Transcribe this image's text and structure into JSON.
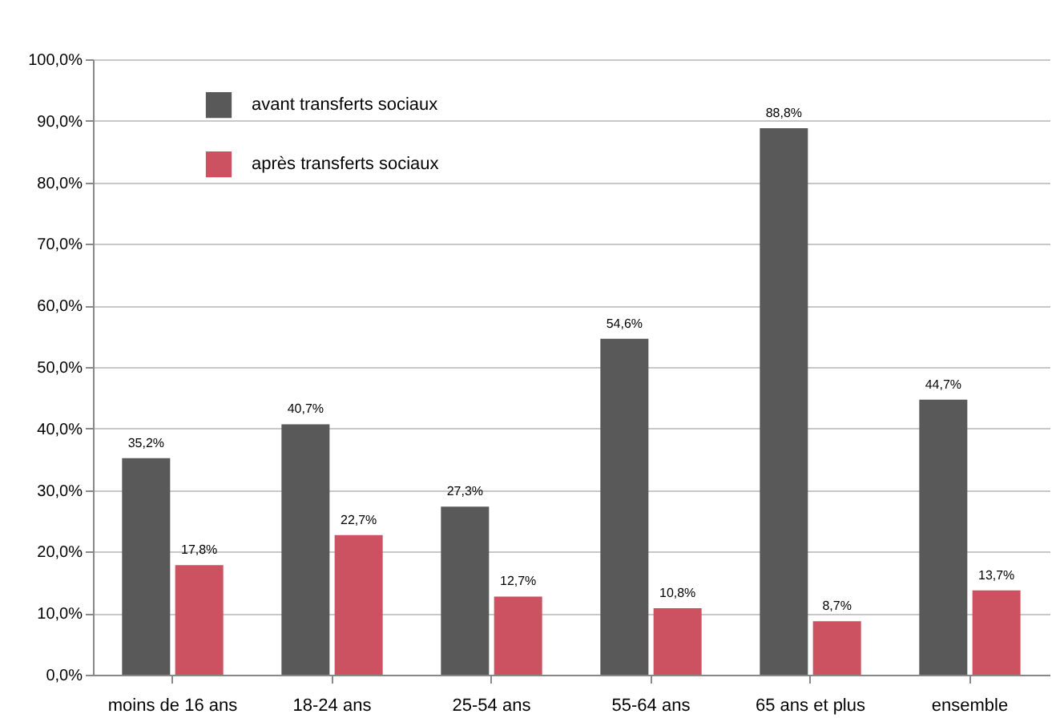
{
  "chart_data": {
    "type": "bar",
    "categories": [
      "moins de 16 ans",
      "18-24 ans",
      "25-54 ans",
      "55-64 ans",
      "65 ans et plus",
      "ensemble"
    ],
    "series": [
      {
        "name": "avant transferts sociaux",
        "color": "#595959",
        "values": [
          35.2,
          40.7,
          27.3,
          54.6,
          88.8,
          44.7
        ],
        "value_labels": [
          "35,2%",
          "40,7%",
          "27,3%",
          "54,6%",
          "88,8%",
          "44,7%"
        ]
      },
      {
        "name": "après transferts sociaux",
        "color": "#cc5262",
        "values": [
          17.8,
          22.7,
          12.7,
          10.8,
          8.7,
          13.7
        ],
        "value_labels": [
          "17,8%",
          "22,7%",
          "12,7%",
          "10,8%",
          "8,7%",
          "13,7%"
        ]
      }
    ],
    "ylim": [
      0,
      100
    ],
    "yticks": [
      {
        "value": 0,
        "label": "0,0%"
      },
      {
        "value": 10,
        "label": "10,0%"
      },
      {
        "value": 20,
        "label": "20,0%"
      },
      {
        "value": 30,
        "label": "30,0%"
      },
      {
        "value": 40,
        "label": "40,0%"
      },
      {
        "value": 50,
        "label": "50,0%"
      },
      {
        "value": 60,
        "label": "60,0%"
      },
      {
        "value": 70,
        "label": "70,0%"
      },
      {
        "value": 80,
        "label": "80,0%"
      },
      {
        "value": 90,
        "label": "90,0%"
      },
      {
        "value": 100,
        "label": "100,0%"
      }
    ],
    "grid": "y",
    "legend": "top left"
  }
}
